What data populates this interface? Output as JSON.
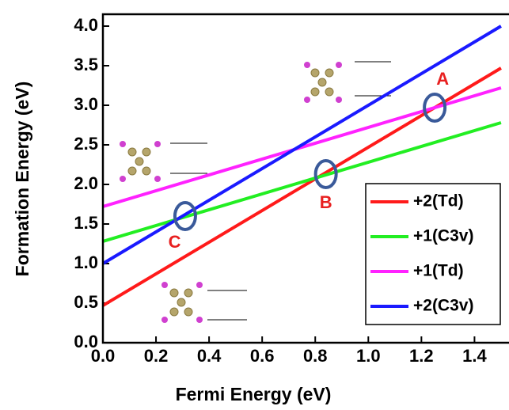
{
  "chart_data": {
    "type": "line",
    "x_label": "Fermi Energy (eV)",
    "y_label": "Formation Energy (eV)",
    "x": [
      0,
      1.5
    ],
    "series": [
      {
        "name": "+2(Td)",
        "color": "#ff1a1a",
        "values": [
          0.47,
          3.47
        ]
      },
      {
        "name": "+1(C3v)",
        "color": "#22ee22",
        "values": [
          1.28,
          2.78
        ]
      },
      {
        "name": "+1(Td)",
        "color": "#ff22ff",
        "values": [
          1.72,
          3.22
        ]
      },
      {
        "name": "+2(C3v)",
        "color": "#1a1aff",
        "values": [
          1.0,
          4.0
        ]
      }
    ],
    "annotations": [
      "A",
      "B",
      "C"
    ],
    "xlim": [
      0,
      1.53
    ],
    "ylim": [
      0,
      4.15
    ],
    "xticks": [
      {
        "value": 0,
        "label": "0.0"
      },
      {
        "value": 0.2,
        "label": "0.2"
      },
      {
        "value": 0.4,
        "label": "0.4"
      },
      {
        "value": 0.6,
        "label": "0.6"
      },
      {
        "value": 0.8,
        "label": "0.8"
      },
      {
        "value": 1,
        "label": "1.0"
      },
      {
        "value": 1.2,
        "label": "1.2"
      },
      {
        "value": 1.4,
        "label": "1.4"
      }
    ],
    "yticks": [
      {
        "value": 0,
        "label": "0.0"
      },
      {
        "value": 0.5,
        "label": "0.5"
      },
      {
        "value": 1,
        "label": "1.0"
      },
      {
        "value": 1.5,
        "label": "1.5"
      },
      {
        "value": 2,
        "label": "2.0"
      },
      {
        "value": 2.5,
        "label": "2.5"
      },
      {
        "value": 3,
        "label": "3.0"
      },
      {
        "value": 3.5,
        "label": "3.5"
      },
      {
        "value": 4,
        "label": "4.0"
      }
    ]
  }
}
